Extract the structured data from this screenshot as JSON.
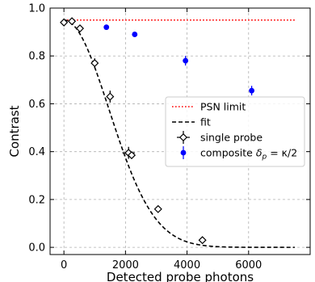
{
  "chart_data": {
    "type": "scatter",
    "xlabel": "Detected probe photons",
    "ylabel": "Contrast",
    "xlim": [
      -450,
      8000
    ],
    "ylim": [
      -0.03,
      1.0
    ],
    "xticks": [
      0,
      2000,
      4000,
      6000
    ],
    "yticks": [
      0.0,
      0.2,
      0.4,
      0.6,
      0.8,
      1.0
    ],
    "xtick_labels": [
      "0",
      "2000",
      "4000",
      "6000"
    ],
    "ytick_labels": [
      "0.0",
      "0.2",
      "0.4",
      "0.6",
      "0.8",
      "1.0"
    ],
    "grid": true,
    "legend_position": "center-right",
    "series": [
      {
        "name": "PSN limit",
        "kind": "line",
        "style": "dotted",
        "color": "#ff0000",
        "x": [
          0,
          7500
        ],
        "y": [
          0.95,
          0.95
        ]
      },
      {
        "name": "fit",
        "kind": "curve",
        "style": "dashed",
        "color": "#000000",
        "function": "0.95*exp(-(x/2073)^2)",
        "x_range": [
          0,
          7500
        ]
      },
      {
        "name": "single probe",
        "kind": "points",
        "marker": "diamond",
        "color": "#000000",
        "x": [
          0,
          260,
          520,
          1000,
          1500,
          2100,
          2200,
          3060,
          4500
        ],
        "y": [
          0.94,
          0.945,
          0.915,
          0.77,
          0.63,
          0.395,
          0.385,
          0.16,
          0.03
        ],
        "xerr": [
          0,
          0,
          0,
          0,
          0,
          200,
          0,
          0,
          0
        ],
        "yerr": [
          0,
          0.01,
          0.01,
          0.02,
          0.025,
          0.025,
          0.01,
          0.01,
          0.01
        ]
      },
      {
        "name": "composite δp = κ/2",
        "kind": "points",
        "marker": "circle",
        "color": "#0000ff",
        "x": [
          1380,
          2300,
          3950,
          6100
        ],
        "y": [
          0.92,
          0.89,
          0.78,
          0.655
        ],
        "xerr": [
          0,
          0,
          0,
          0
        ],
        "yerr": [
          0,
          0,
          0.02,
          0.02
        ]
      }
    ],
    "legend": [
      {
        "label": "PSN limit"
      },
      {
        "label": "fit"
      },
      {
        "label": "single probe"
      },
      {
        "label_main": "composite ",
        "label_delta": "δ",
        "label_sub": "p",
        "label_rest": " = κ/2"
      }
    ]
  }
}
